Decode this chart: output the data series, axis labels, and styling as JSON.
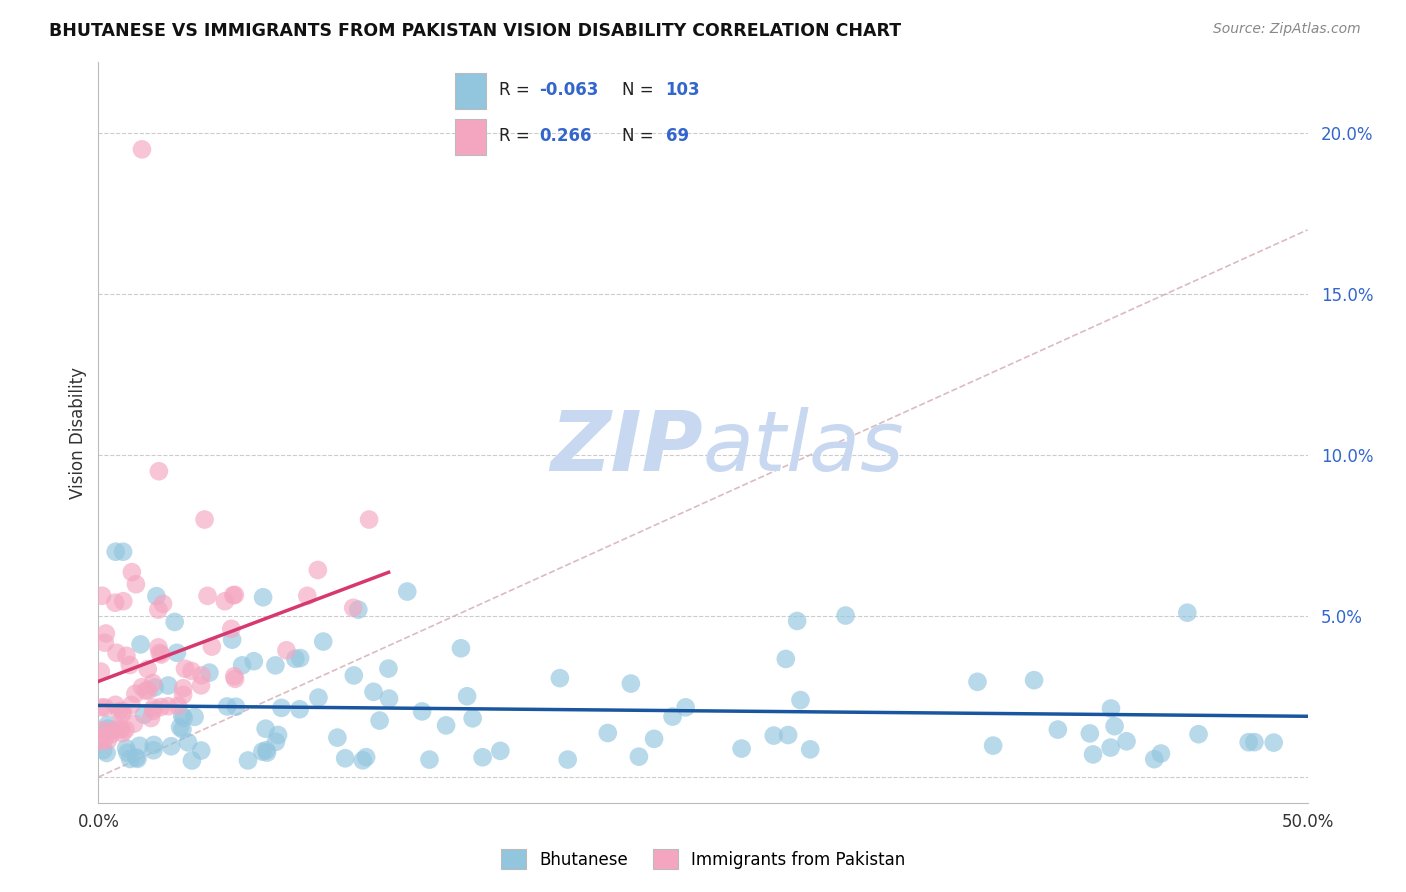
{
  "title": "BHUTANESE VS IMMIGRANTS FROM PAKISTAN VISION DISABILITY CORRELATION CHART",
  "source_text": "Source: ZipAtlas.com",
  "ylabel": "Vision Disability",
  "xlim": [
    0.0,
    0.5
  ],
  "ylim": [
    -0.008,
    0.222
  ],
  "yticks": [
    0.0,
    0.05,
    0.1,
    0.15,
    0.2
  ],
  "ytick_labels": [
    "",
    "5.0%",
    "10.0%",
    "15.0%",
    "20.0%"
  ],
  "xticks": [
    0.0,
    0.1,
    0.2,
    0.3,
    0.4,
    0.5
  ],
  "xtick_labels": [
    "0.0%",
    "",
    "",
    "",
    "",
    "50.0%"
  ],
  "blue_color": "#92c5de",
  "pink_color": "#f4a6c0",
  "blue_line_color": "#1a56a0",
  "pink_line_color": "#d63870",
  "grid_color": "#cccccc",
  "background_color": "#ffffff",
  "diag_line_color": "#d4aab0",
  "legend_border_color": "#cccccc",
  "tick_color": "#3366cc",
  "watermark_color": "#c8d8f0"
}
